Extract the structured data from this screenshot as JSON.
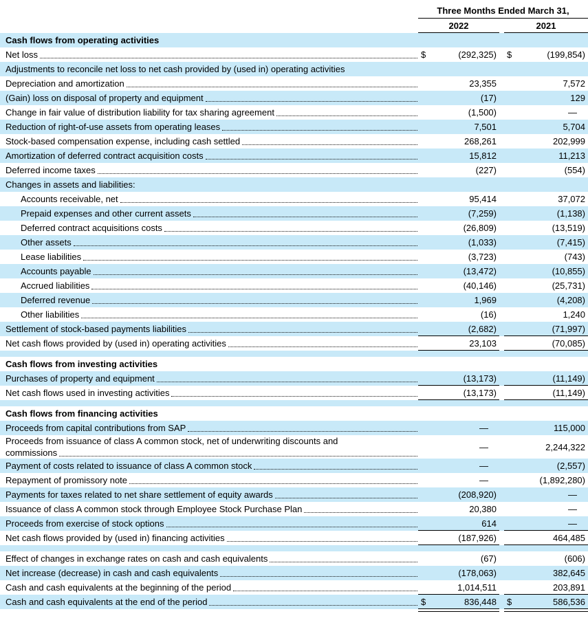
{
  "currency_symbol": "$",
  "colors": {
    "row_highlight": "#c8e9f8",
    "text": "#000000",
    "rule": "#000000"
  },
  "header": {
    "period_label": "Three Months Ended March 31,",
    "years": [
      "2022",
      "2021"
    ]
  },
  "rows": [
    {
      "label": "Cash flows from operating activities",
      "bold": true,
      "blue": true
    },
    {
      "label": "Net loss",
      "leader": true,
      "dollar": true,
      "v2022": "(292,325)",
      "v2021": "(199,854)"
    },
    {
      "label": "Adjustments to reconcile net loss to net cash provided by (used in) operating activities",
      "blue": true
    },
    {
      "label": "Depreciation and amortization",
      "leader": true,
      "v2022": "23,355",
      "v2021": "7,572"
    },
    {
      "label": "(Gain) loss on disposal of property and equipment",
      "blue": true,
      "leader": true,
      "v2022": "(17)",
      "v2021": "129"
    },
    {
      "label": "Change in fair value of distribution liability for tax sharing agreement",
      "leader": true,
      "v2022": "(1,500)",
      "v2021": "—"
    },
    {
      "label": "Reduction of right-of-use assets from operating leases",
      "blue": true,
      "leader": true,
      "v2022": "7,501",
      "v2021": "5,704"
    },
    {
      "label": "Stock-based compensation expense, including cash settled",
      "leader": true,
      "v2022": "268,261",
      "v2021": "202,999"
    },
    {
      "label": "Amortization of deferred contract acquisition costs",
      "blue": true,
      "leader": true,
      "v2022": "15,812",
      "v2021": "11,213"
    },
    {
      "label": "Deferred income taxes",
      "leader": true,
      "v2022": "(227)",
      "v2021": "(554)"
    },
    {
      "label": "Changes in assets and liabilities:",
      "blue": true
    },
    {
      "label": "Accounts receivable, net",
      "indent": true,
      "leader": true,
      "v2022": "95,414",
      "v2021": "37,072"
    },
    {
      "label": "Prepaid expenses and other current assets",
      "indent": true,
      "blue": true,
      "leader": true,
      "v2022": "(7,259)",
      "v2021": "(1,138)"
    },
    {
      "label": "Deferred contract acquisitions costs",
      "indent": true,
      "leader": true,
      "v2022": "(26,809)",
      "v2021": "(13,519)"
    },
    {
      "label": "Other assets",
      "indent": true,
      "blue": true,
      "leader": true,
      "v2022": "(1,033)",
      "v2021": "(7,415)"
    },
    {
      "label": "Lease liabilities",
      "indent": true,
      "leader": true,
      "v2022": "(3,723)",
      "v2021": "(743)"
    },
    {
      "label": "Accounts payable",
      "indent": true,
      "blue": true,
      "leader": true,
      "v2022": "(13,472)",
      "v2021": "(10,855)"
    },
    {
      "label": "Accrued liabilities",
      "indent": true,
      "leader": true,
      "v2022": "(40,146)",
      "v2021": "(25,731)"
    },
    {
      "label": "Deferred revenue",
      "indent": true,
      "blue": true,
      "leader": true,
      "v2022": "1,969",
      "v2021": "(4,208)"
    },
    {
      "label": "Other liabilities",
      "indent": true,
      "leader": true,
      "v2022": "(16)",
      "v2021": "1,240"
    },
    {
      "label": "Settlement of stock-based payments liabilities",
      "blue": true,
      "leader": true,
      "v2022": "(2,682)",
      "v2021": "(71,997)",
      "rule": "single"
    },
    {
      "label": "Net cash flows provided by (used in) operating activities",
      "leader": true,
      "v2022": "23,103",
      "v2021": "(70,085)",
      "rule": "single"
    },
    {
      "spacer": true,
      "blue": true
    },
    {
      "label": "Cash flows from investing activities",
      "bold": true
    },
    {
      "label": "Purchases of property and equipment",
      "blue": true,
      "leader": true,
      "v2022": "(13,173)",
      "v2021": "(11,149)",
      "rule": "single"
    },
    {
      "label": "Net cash flows used in investing activities",
      "leader": true,
      "v2022": "(13,173)",
      "v2021": "(11,149)",
      "rule": "single"
    },
    {
      "spacer": true,
      "blue": true
    },
    {
      "label": "Cash flows from financing activities",
      "bold": true
    },
    {
      "label": "Proceeds from capital contributions from SAP",
      "blue": true,
      "leader": true,
      "v2022": "—",
      "v2021": "115,000"
    },
    {
      "label": "Proceeds from issuance of class A common stock, net of underwriting discounts and",
      "label2": "commissions",
      "leader": true,
      "v2022": "—",
      "v2021": "2,244,322"
    },
    {
      "label": "Payment of costs related to issuance of class A common stock",
      "blue": true,
      "leader": true,
      "v2022": "—",
      "v2021": "(2,557)"
    },
    {
      "label": "Repayment of promissory note",
      "leader": true,
      "v2022": "—",
      "v2021": "(1,892,280)"
    },
    {
      "label": "Payments for taxes related to net share settlement of equity awards",
      "blue": true,
      "leader": true,
      "v2022": "(208,920)",
      "v2021": "—"
    },
    {
      "label": "Issuance of class A common stock through Employee Stock Purchase Plan",
      "leader": true,
      "v2022": "20,380",
      "v2021": "—"
    },
    {
      "label": "Proceeds from exercise of stock options",
      "blue": true,
      "leader": true,
      "v2022": "614",
      "v2021": "—",
      "rule": "single"
    },
    {
      "label": "Net cash flows provided by (used in) financing activities",
      "leader": true,
      "v2022": "(187,926)",
      "v2021": "464,485",
      "rule": "single"
    },
    {
      "spacer": true,
      "blue": true
    },
    {
      "label": "Effect of changes in exchange rates on cash and cash equivalents",
      "leader": true,
      "v2022": "(67)",
      "v2021": "(606)"
    },
    {
      "label": "Net increase (decrease) in cash and cash equivalents",
      "blue": true,
      "leader": true,
      "v2022": "(178,063)",
      "v2021": "382,645"
    },
    {
      "label": "Cash and cash equivalents at the beginning of the period",
      "leader": true,
      "v2022": "1,014,511",
      "v2021": "203,891",
      "rule": "single"
    },
    {
      "label": "Cash and cash equivalents at the end of the period",
      "blue": true,
      "leader": true,
      "dollar": true,
      "v2022": "836,448",
      "v2021": "586,536",
      "rule": "double"
    }
  ]
}
